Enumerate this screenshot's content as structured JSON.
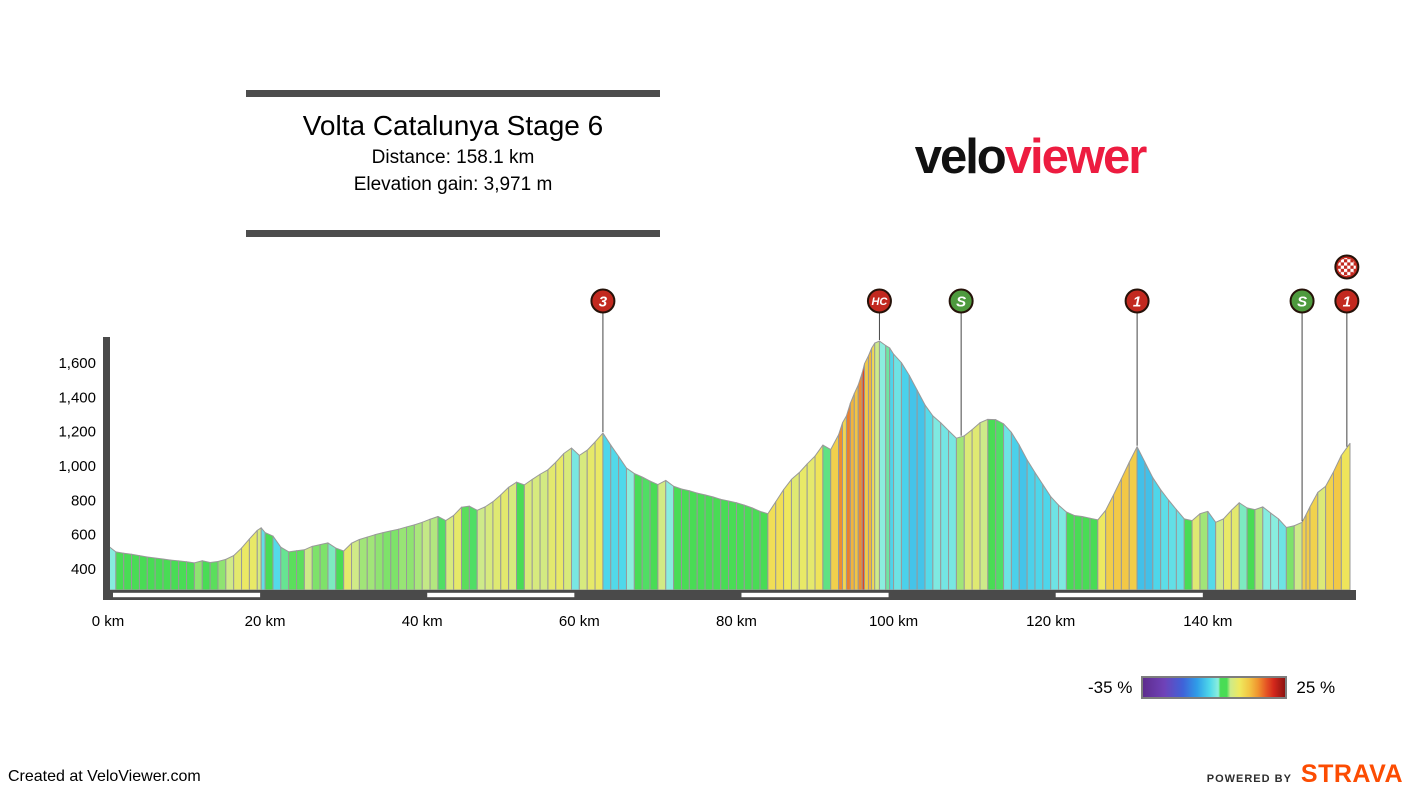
{
  "header": {
    "title": "Volta Catalunya Stage 6",
    "distance_label": "Distance: 158.1 km",
    "elevation_label": "Elevation gain: 3,971 m"
  },
  "logo": {
    "part1": "velo",
    "part2": "viewer",
    "part1_color": "#111111",
    "part2_color": "#ED1C40"
  },
  "legend": {
    "min_label": "-35 %",
    "max_label": "25 %"
  },
  "footer": {
    "credit": "Created at VeloViewer.com",
    "powered_by": "POWERED BY",
    "strava": "STRAVA",
    "strava_color": "#FC4C02"
  },
  "chart_data": {
    "type": "area",
    "title": "Volta Catalunya Stage 6",
    "x_unit": "km",
    "y_unit": "m",
    "x_range": [
      0,
      158.1
    ],
    "y_axis_ticks": [
      {
        "value": 400,
        "label": "400"
      },
      {
        "value": 600,
        "label": "600"
      },
      {
        "value": 800,
        "label": "800"
      },
      {
        "value": 1000,
        "label": "1,000"
      },
      {
        "value": 1200,
        "label": "1,200"
      },
      {
        "value": 1400,
        "label": "1,400"
      },
      {
        "value": 1600,
        "label": "1,600"
      }
    ],
    "x_axis_ticks": [
      {
        "km": 0,
        "label": "0 km"
      },
      {
        "km": 20,
        "label": "20 km"
      },
      {
        "km": 40,
        "label": "40 km"
      },
      {
        "km": 60,
        "label": "60 km"
      },
      {
        "km": 80,
        "label": "80 km"
      },
      {
        "km": 100,
        "label": "100 km"
      },
      {
        "km": 120,
        "label": "120 km"
      },
      {
        "km": 140,
        "label": "140 km"
      }
    ],
    "scale_bar_white_intervals_km": [
      [
        0,
        20
      ],
      [
        40,
        60
      ],
      [
        80,
        100
      ],
      [
        120,
        140
      ]
    ],
    "elevation_points": [
      [
        0,
        535
      ],
      [
        1,
        500
      ],
      [
        2,
        492
      ],
      [
        3,
        486
      ],
      [
        4,
        478
      ],
      [
        5,
        470
      ],
      [
        6,
        464
      ],
      [
        7,
        458
      ],
      [
        8,
        452
      ],
      [
        9,
        447
      ],
      [
        10,
        442
      ],
      [
        11,
        436
      ],
      [
        12,
        448
      ],
      [
        13,
        438
      ],
      [
        14,
        444
      ],
      [
        15,
        456
      ],
      [
        16,
        478
      ],
      [
        17,
        522
      ],
      [
        18,
        575
      ],
      [
        19,
        625
      ],
      [
        19.5,
        640
      ],
      [
        20,
        612
      ],
      [
        21,
        592
      ],
      [
        22,
        527
      ],
      [
        23,
        500
      ],
      [
        24,
        506
      ],
      [
        25,
        512
      ],
      [
        26,
        532
      ],
      [
        27,
        542
      ],
      [
        28,
        552
      ],
      [
        29,
        522
      ],
      [
        30,
        505
      ],
      [
        31,
        550
      ],
      [
        32,
        572
      ],
      [
        33,
        586
      ],
      [
        34,
        600
      ],
      [
        35,
        612
      ],
      [
        36,
        622
      ],
      [
        37,
        632
      ],
      [
        38,
        645
      ],
      [
        39,
        657
      ],
      [
        40,
        672
      ],
      [
        41,
        690
      ],
      [
        42,
        706
      ],
      [
        43,
        682
      ],
      [
        44,
        712
      ],
      [
        45,
        760
      ],
      [
        46,
        766
      ],
      [
        47,
        742
      ],
      [
        48,
        762
      ],
      [
        49,
        792
      ],
      [
        50,
        832
      ],
      [
        51,
        876
      ],
      [
        52,
        906
      ],
      [
        53,
        890
      ],
      [
        54,
        922
      ],
      [
        55,
        952
      ],
      [
        56,
        978
      ],
      [
        57,
        1022
      ],
      [
        58,
        1072
      ],
      [
        59,
        1105
      ],
      [
        60,
        1062
      ],
      [
        61,
        1092
      ],
      [
        62,
        1140
      ],
      [
        63,
        1192
      ],
      [
        64,
        1122
      ],
      [
        65,
        1056
      ],
      [
        66,
        988
      ],
      [
        67,
        956
      ],
      [
        68,
        936
      ],
      [
        69,
        912
      ],
      [
        70,
        892
      ],
      [
        71,
        916
      ],
      [
        72,
        882
      ],
      [
        73,
        866
      ],
      [
        74,
        856
      ],
      [
        75,
        842
      ],
      [
        76,
        832
      ],
      [
        77,
        820
      ],
      [
        78,
        806
      ],
      [
        79,
        796
      ],
      [
        80,
        786
      ],
      [
        81,
        772
      ],
      [
        82,
        756
      ],
      [
        83,
        736
      ],
      [
        84,
        722
      ],
      [
        85,
        792
      ],
      [
        86,
        862
      ],
      [
        87,
        922
      ],
      [
        88,
        962
      ],
      [
        89,
        1012
      ],
      [
        90,
        1058
      ],
      [
        91,
        1122
      ],
      [
        92,
        1096
      ],
      [
        93,
        1182
      ],
      [
        93.5,
        1252
      ],
      [
        94,
        1292
      ],
      [
        94.5,
        1366
      ],
      [
        95,
        1422
      ],
      [
        95.5,
        1472
      ],
      [
        96,
        1542
      ],
      [
        96.3,
        1596
      ],
      [
        96.8,
        1642
      ],
      [
        97.2,
        1686
      ],
      [
        97.6,
        1716
      ],
      [
        98.2,
        1728
      ],
      [
        99,
        1702
      ],
      [
        99.5,
        1688
      ],
      [
        100,
        1652
      ],
      [
        101,
        1602
      ],
      [
        102,
        1528
      ],
      [
        103,
        1442
      ],
      [
        104,
        1356
      ],
      [
        105,
        1292
      ],
      [
        106,
        1252
      ],
      [
        107,
        1206
      ],
      [
        108,
        1162
      ],
      [
        109,
        1176
      ],
      [
        110,
        1212
      ],
      [
        111,
        1252
      ],
      [
        112,
        1272
      ],
      [
        113,
        1270
      ],
      [
        114,
        1246
      ],
      [
        115,
        1196
      ],
      [
        116,
        1122
      ],
      [
        117,
        1036
      ],
      [
        118,
        962
      ],
      [
        119,
        892
      ],
      [
        120,
        822
      ],
      [
        121,
        772
      ],
      [
        122,
        732
      ],
      [
        123,
        712
      ],
      [
        124,
        706
      ],
      [
        125,
        696
      ],
      [
        126,
        686
      ],
      [
        127,
        742
      ],
      [
        128,
        832
      ],
      [
        129,
        926
      ],
      [
        130,
        1022
      ],
      [
        131,
        1112
      ],
      [
        132,
        1022
      ],
      [
        133,
        932
      ],
      [
        134,
        862
      ],
      [
        135,
        802
      ],
      [
        136,
        746
      ],
      [
        137,
        692
      ],
      [
        138,
        682
      ],
      [
        139,
        722
      ],
      [
        140,
        736
      ],
      [
        141,
        672
      ],
      [
        142,
        692
      ],
      [
        143,
        742
      ],
      [
        144,
        786
      ],
      [
        145,
        756
      ],
      [
        146,
        746
      ],
      [
        147,
        762
      ],
      [
        148,
        726
      ],
      [
        149,
        692
      ],
      [
        150,
        642
      ],
      [
        151,
        652
      ],
      [
        152,
        672
      ],
      [
        152.5,
        716
      ],
      [
        153,
        762
      ],
      [
        154,
        846
      ],
      [
        155,
        882
      ],
      [
        156,
        966
      ],
      [
        157,
        1062
      ],
      [
        158.1,
        1132
      ]
    ],
    "markers": [
      {
        "km": 63,
        "type": "cat3",
        "label": "3",
        "color": "#C2291F"
      },
      {
        "km": 98.2,
        "type": "hc",
        "label": "HC",
        "color": "#C2291F"
      },
      {
        "km": 108.6,
        "type": "sprint",
        "label": "S",
        "color": "#4E9A3E"
      },
      {
        "km": 131,
        "type": "cat1",
        "label": "1",
        "color": "#C2291F"
      },
      {
        "km": 152,
        "type": "sprint",
        "label": "S",
        "color": "#4E9A3E"
      },
      {
        "km": 157.7,
        "type": "cat1",
        "label": "1",
        "color": "#C2291F"
      },
      {
        "km": 157.7,
        "type": "finish",
        "label": "",
        "color": "#C2291F"
      }
    ],
    "gradient_legend": {
      "min_pct": -35,
      "max_pct": 25,
      "stops": [
        [
          0.0,
          "#5e2c8e"
        ],
        [
          0.15,
          "#6f42b8"
        ],
        [
          0.28,
          "#3f62d8"
        ],
        [
          0.38,
          "#2f9ce8"
        ],
        [
          0.47,
          "#4fd8ea"
        ],
        [
          0.53,
          "#8ceede"
        ],
        [
          0.545,
          "#49dc55"
        ],
        [
          0.59,
          "#49dc55"
        ],
        [
          0.615,
          "#cdea8a"
        ],
        [
          0.68,
          "#efe95e"
        ],
        [
          0.75,
          "#f2c443"
        ],
        [
          0.81,
          "#f0942f"
        ],
        [
          0.87,
          "#e55424"
        ],
        [
          0.92,
          "#d3281c"
        ],
        [
          1.0,
          "#8c1210"
        ]
      ]
    }
  }
}
